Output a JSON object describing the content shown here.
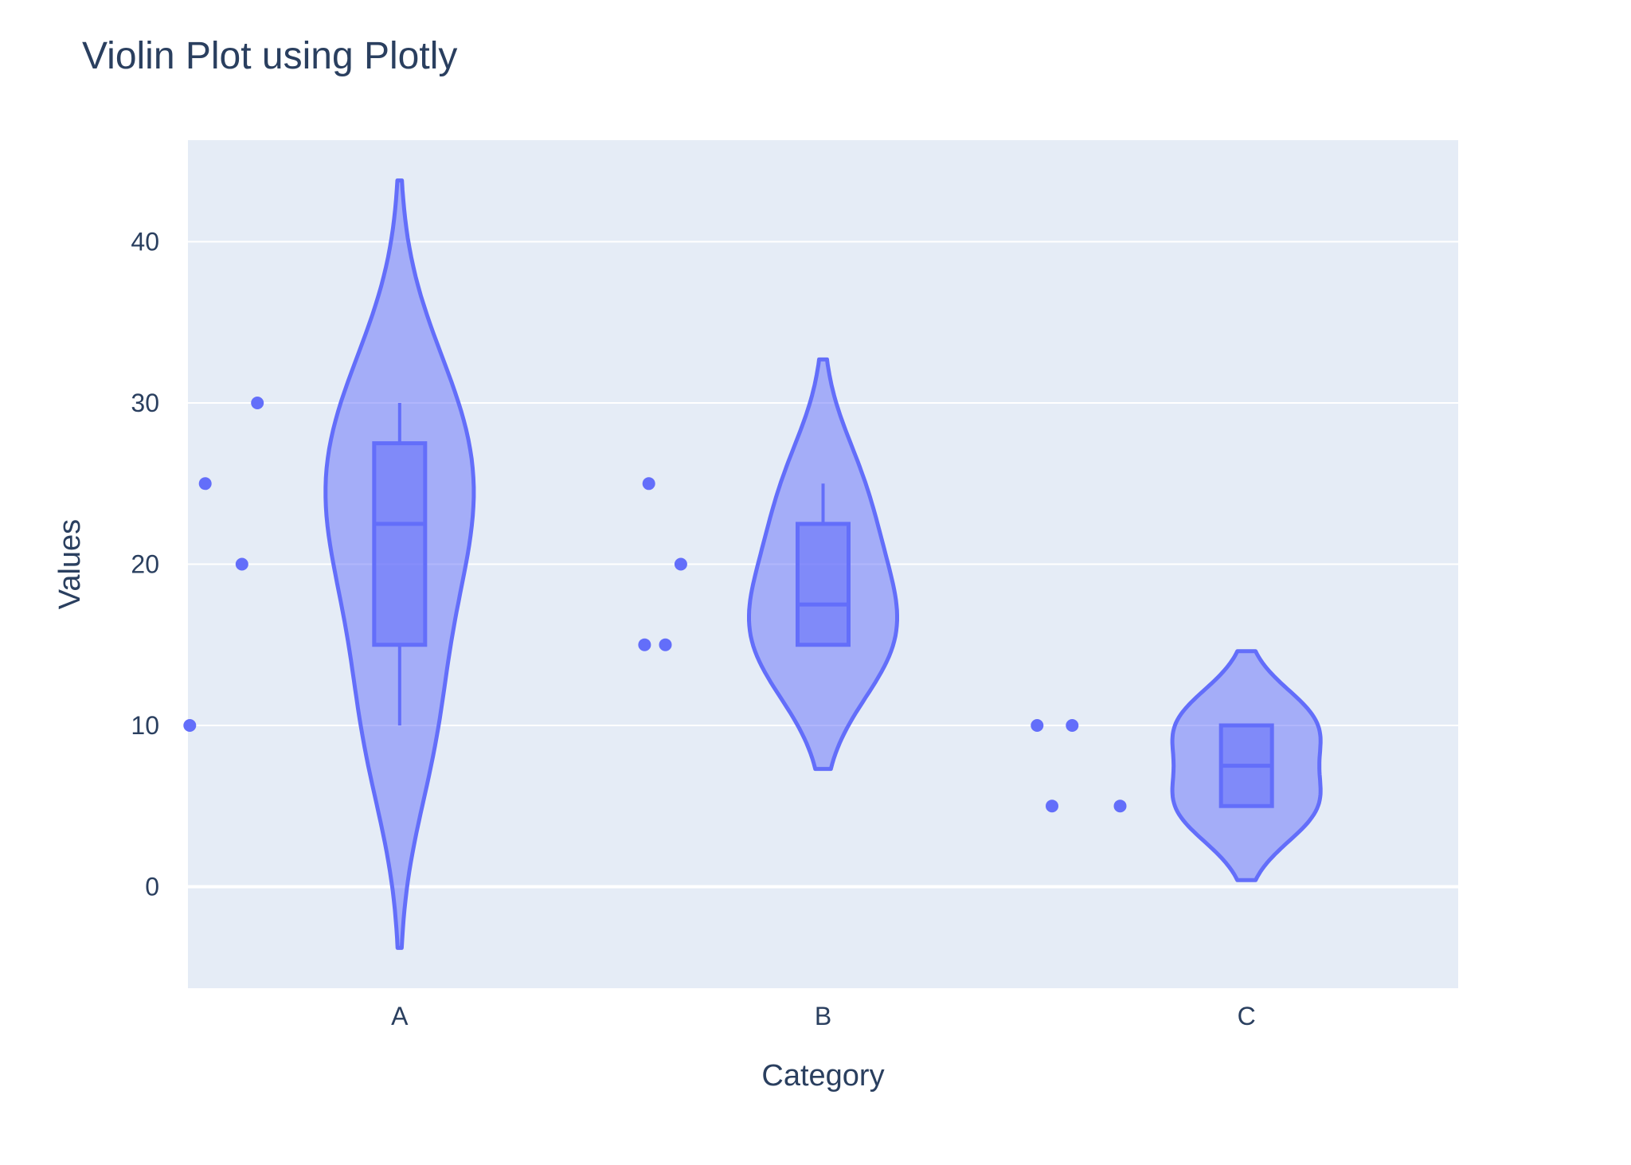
{
  "chart_data": {
    "type": "violin",
    "title": "Violin Plot using Plotly",
    "xlabel": "Category",
    "ylabel": "Values",
    "ylim": [
      -6.3,
      46.3
    ],
    "y_ticks": [
      0,
      10,
      20,
      30,
      40
    ],
    "categories": [
      "A",
      "B",
      "C"
    ],
    "grid": true,
    "colors": {
      "marker": "#636efa",
      "violin_fill": "rgba(99,110,250,0.5)",
      "plot_bg": "#e5ecf6",
      "grid": "#ffffff",
      "text": "#2a3f5f"
    },
    "series": [
      {
        "category": "A",
        "points": [
          10,
          20,
          25,
          30
        ],
        "box": {
          "min": 10,
          "q1": 15,
          "median": 22.5,
          "q3": 27.5,
          "max": 30
        },
        "violin_range": [
          -3.8,
          43.8
        ]
      },
      {
        "category": "B",
        "points": [
          15,
          15,
          20,
          25
        ],
        "box": {
          "min": 15,
          "q1": 15,
          "median": 17.5,
          "q3": 22.5,
          "max": 25
        },
        "violin_range": [
          7.3,
          32.7
        ]
      },
      {
        "category": "C",
        "points": [
          5,
          5,
          10,
          10
        ],
        "box": {
          "min": 5,
          "q1": 5,
          "median": 7.5,
          "q3": 10,
          "max": 10
        },
        "violin_range": [
          0.4,
          14.6
        ]
      }
    ]
  }
}
